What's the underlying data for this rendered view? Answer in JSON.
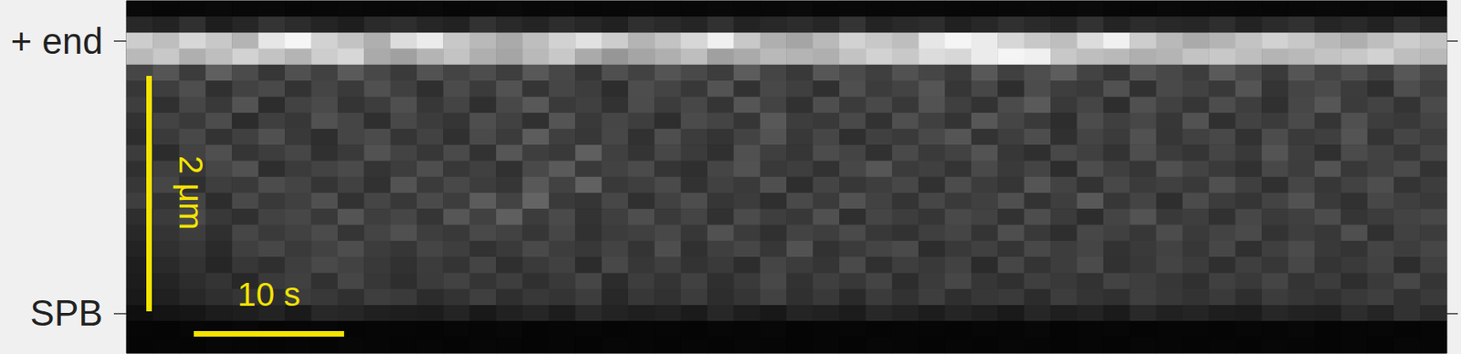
{
  "chart_data": {
    "type": "heatmap",
    "categories": [
      null,
      null,
      "+ end",
      null,
      null,
      null,
      null,
      null,
      null,
      null,
      null,
      null,
      null,
      null,
      null,
      null,
      null,
      null,
      null,
      "SPB",
      null,
      null
    ],
    "tick_labels": "y",
    "annotations": [
      "2 μm",
      "10 s"
    ],
    "color_range": [
      0,
      255
    ],
    "cells": [
      [
        9,
        7,
        8,
        10,
        8,
        9,
        7,
        8,
        9,
        8,
        8,
        9,
        7,
        8,
        10,
        8,
        9,
        7,
        8,
        9,
        8,
        7,
        9,
        8,
        8,
        10,
        7,
        9,
        8,
        8,
        9,
        8,
        7,
        8,
        9,
        8,
        10,
        8,
        7,
        9,
        8,
        9,
        8,
        7,
        8,
        9,
        8,
        10,
        8,
        9
      ],
      [
        40,
        35,
        48,
        30,
        38,
        52,
        44,
        36,
        30,
        42,
        46,
        38,
        34,
        50,
        41,
        36,
        45,
        39,
        33,
        47,
        42,
        37,
        49,
        35,
        40,
        44,
        38,
        52,
        36,
        41,
        45,
        33,
        39,
        48,
        42,
        37,
        50,
        36,
        44,
        40,
        38,
        46,
        35,
        43,
        49,
        37,
        41,
        34,
        47,
        39
      ],
      [
        205,
        190,
        215,
        200,
        180,
        230,
        245,
        210,
        195,
        175,
        220,
        235,
        200,
        185,
        170,
        190,
        210,
        225,
        205,
        180,
        195,
        215,
        240,
        200,
        175,
        165,
        185,
        210,
        200,
        190,
        230,
        245,
        235,
        215,
        200,
        190,
        220,
        240,
        205,
        185,
        170,
        180,
        195,
        210,
        200,
        185,
        175,
        190,
        205,
        195
      ],
      [
        185,
        200,
        175,
        190,
        210,
        195,
        180,
        205,
        215,
        170,
        160,
        180,
        195,
        175,
        165,
        185,
        200,
        170,
        150,
        165,
        175,
        190,
        160,
        170,
        185,
        180,
        175,
        195,
        210,
        200,
        220,
        215,
        235,
        245,
        240,
        200,
        190,
        185,
        175,
        180,
        195,
        200,
        190,
        180,
        185,
        195,
        200,
        210,
        190,
        185
      ],
      [
        70,
        85,
        60,
        95,
        75,
        55,
        80,
        65,
        90,
        72,
        58,
        82,
        68,
        77,
        62,
        88,
        71,
        54,
        79,
        66,
        84,
        73,
        61,
        92,
        69,
        57,
        86,
        75,
        63,
        81,
        70,
        59,
        88,
        64,
        78,
        93,
        67,
        55,
        83,
        72,
        61,
        90,
        74,
        58,
        85,
        68,
        79,
        63,
        87,
        71
      ],
      [
        55,
        62,
        78,
        48,
        66,
        73,
        51,
        69,
        58,
        80,
        64,
        47,
        75,
        59,
        82,
        53,
        70,
        61,
        45,
        77,
        68,
        56,
        83,
        50,
        72,
        63,
        48,
        79,
        60,
        67,
        85,
        54,
        71,
        46,
        76,
        62,
        58,
        81,
        49,
        73,
        66,
        57,
        84,
        52,
        69,
        75,
        60,
        47,
        78,
        64
      ],
      [
        62,
        48,
        70,
        57,
        83,
        45,
        66,
        74,
        52,
        61,
        79,
        55,
        68,
        47,
        72,
        88,
        58,
        64,
        50,
        76,
        60,
        71,
        53,
        85,
        67,
        49,
        78,
        59,
        73,
        56,
        82,
        63,
        51,
        75,
        90,
        57,
        69,
        46,
        80,
        65,
        54,
        77,
        62,
        48,
        71,
        86,
        59,
        67,
        52,
        74
      ],
      [
        50,
        67,
        58,
        76,
        44,
        63,
        55,
        81,
        69,
        47,
        72,
        60,
        53,
        78,
        65,
        49,
        84,
        57,
        70,
        62,
        46,
        75,
        68,
        54,
        88,
        61,
        57,
        73,
        50,
        79,
        64,
        52,
        87,
        69,
        58,
        45,
        76,
        63,
        71,
        55,
        82,
        48,
        66,
        59,
        74,
        53,
        80,
        61,
        57,
        68
      ],
      [
        45,
        58,
        72,
        51,
        64,
        80,
        57,
        46,
        69,
        75,
        53,
        66,
        48,
        74,
        59,
        92,
        63,
        55,
        71,
        49,
        78,
        60,
        52,
        67,
        83,
        56,
        70,
        47,
        64,
        58,
        73,
        85,
        51,
        62,
        77,
        48,
        68,
        59,
        81,
        54,
        65,
        72,
        50,
        76,
        58,
        63,
        84,
        52,
        69,
        61
      ],
      [
        60,
        44,
        66,
        79,
        53,
        61,
        70,
        48,
        58,
        82,
        67,
        55,
        74,
        50,
        86,
        62,
        57,
        95,
        64,
        52,
        71,
        59,
        48,
        80,
        63,
        54,
        76,
        68,
        49,
        73,
        58,
        66,
        83,
        55,
        47,
        72,
        64,
        51,
        78,
        60,
        53,
        69,
        57,
        84,
        62,
        48,
        75,
        66,
        55,
        70
      ],
      [
        48,
        63,
        55,
        70,
        81,
        46,
        59,
        67,
        74,
        52,
        61,
        78,
        56,
        64,
        49,
        73,
        90,
        58,
        66,
        75,
        53,
        47,
        69,
        82,
        57,
        62,
        50,
        71,
        86,
        59,
        64,
        52,
        73,
        58,
        68,
        45,
        77,
        63,
        54,
        80,
        67,
        58,
        49,
        72,
        61,
        83,
        56,
        65,
        74,
        51
      ],
      [
        55,
        70,
        47,
        62,
        58,
        76,
        68,
        53,
        65,
        49,
        83,
        59,
        72,
        61,
        54,
        88,
        66,
        97,
        57,
        63,
        74,
        50,
        65,
        58,
        79,
        46,
        68,
        55,
        62,
        71,
        49,
        76,
        60,
        53,
        85,
        67,
        51,
        72,
        59,
        64,
        57,
        80,
        63,
        48,
        70,
        55,
        66,
        78,
        52,
        61
      ],
      [
        62,
        51,
        68,
        45,
        73,
        57,
        64,
        80,
        50,
        69,
        56,
        74,
        61,
        92,
        67,
        100,
        58,
        53,
        71,
        48,
        65,
        77,
        54,
        60,
        47,
        73,
        59,
        82,
        66,
        52,
        70,
        58,
        64,
        79,
        51,
        62,
        88,
        55,
        68,
        46,
        75,
        60,
        53,
        67,
        82,
        58,
        49,
        71,
        63,
        57
      ],
      [
        46,
        59,
        73,
        56,
        48,
        66,
        71,
        57,
        84,
        62,
        70,
        53,
        86,
        65,
        95,
        60,
        74,
        51,
        63,
        78,
        58,
        68,
        49,
        75,
        62,
        56,
        80,
        47,
        69,
        61,
        54,
        73,
        66,
        50,
        77,
        59,
        45,
        68,
        83,
        57,
        62,
        49,
        71,
        58,
        64,
        76,
        53,
        60,
        67,
        72
      ],
      [
        40,
        52,
        61,
        47,
        70,
        58,
        65,
        75,
        53,
        68,
        80,
        62,
        57,
        73,
        66,
        54,
        70,
        49,
        60,
        64,
        72,
        55,
        81,
        59,
        48,
        67,
        62,
        74,
        56,
        50,
        63,
        69,
        52,
        78,
        57,
        46,
        71,
        64,
        55,
        76,
        58,
        67,
        74,
        51,
        62,
        56,
        79,
        48,
        65,
        60
      ],
      [
        35,
        48,
        55,
        42,
        63,
        71,
        58,
        66,
        77,
        60,
        54,
        69,
        62,
        50,
        58,
        73,
        61,
        56,
        67,
        52,
        78,
        48,
        63,
        70,
        55,
        82,
        50,
        59,
        68,
        74,
        45,
        57,
        64,
        53,
        72,
        61,
        69,
        50,
        58,
        66,
        55,
        71,
        48,
        63,
        75,
        57,
        52,
        68,
        61,
        70
      ],
      [
        30,
        42,
        50,
        38,
        55,
        47,
        62,
        73,
        66,
        57,
        49,
        60,
        52,
        68,
        47,
        58,
        65,
        44,
        72,
        55,
        63,
        51,
        58,
        45,
        69,
        60,
        53,
        74,
        48,
        62,
        57,
        66,
        43,
        70,
        52,
        61,
        75,
        49,
        56,
        68,
        60,
        47,
        63,
        55,
        71,
        52,
        58,
        66,
        45,
        64
      ],
      [
        28,
        36,
        45,
        52,
        40,
        58,
        64,
        49,
        70,
        55,
        46,
        59,
        66,
        53,
        62,
        48,
        57,
        70,
        44,
        61,
        52,
        65,
        47,
        58,
        72,
        50,
        63,
        56,
        68,
        45,
        59,
        71,
        54,
        48,
        63,
        57,
        50,
        67,
        62,
        55,
        48,
        64,
        57,
        69,
        52,
        60,
        46,
        58,
        71,
        53
      ],
      [
        25,
        32,
        40,
        47,
        53,
        45,
        60,
        56,
        48,
        62,
        58,
        44,
        51,
        63,
        47,
        56,
        52,
        61,
        40,
        55,
        49,
        60,
        45,
        53,
        66,
        48,
        57,
        42,
        59,
        50,
        62,
        47,
        55,
        58,
        44,
        61,
        52,
        48,
        63,
        56,
        51,
        58,
        46,
        60,
        54,
        49,
        57,
        63,
        50,
        58
      ],
      [
        15,
        20,
        22,
        28,
        30,
        35,
        26,
        40,
        38,
        32,
        30,
        28,
        36,
        25,
        33,
        38,
        29,
        42,
        35,
        31,
        34,
        27,
        39,
        30,
        24,
        36,
        33,
        28,
        40,
        35,
        29,
        37,
        32,
        26,
        38,
        31,
        35,
        27,
        41,
        33,
        36,
        30,
        28,
        39,
        34,
        32,
        45,
        37,
        50,
        42
      ],
      [
        6,
        5,
        7,
        6,
        8,
        5,
        6,
        7,
        5,
        6,
        6,
        5,
        7,
        6,
        8,
        5,
        6,
        7,
        5,
        6,
        6,
        5,
        7,
        6,
        8,
        5,
        6,
        7,
        5,
        6,
        6,
        5,
        7,
        6,
        8,
        5,
        6,
        7,
        5,
        6,
        6,
        5,
        7,
        6,
        8,
        5,
        6,
        7,
        5,
        6
      ],
      [
        5,
        6,
        5,
        7,
        6,
        5,
        6,
        5,
        7,
        6,
        5,
        6,
        5,
        7,
        6,
        5,
        6,
        5,
        7,
        6,
        5,
        6,
        5,
        7,
        6,
        5,
        6,
        5,
        7,
        6,
        5,
        6,
        5,
        7,
        6,
        5,
        6,
        5,
        7,
        6,
        5,
        6,
        5,
        7,
        6,
        5,
        6,
        5,
        7,
        6
      ]
    ]
  }
}
